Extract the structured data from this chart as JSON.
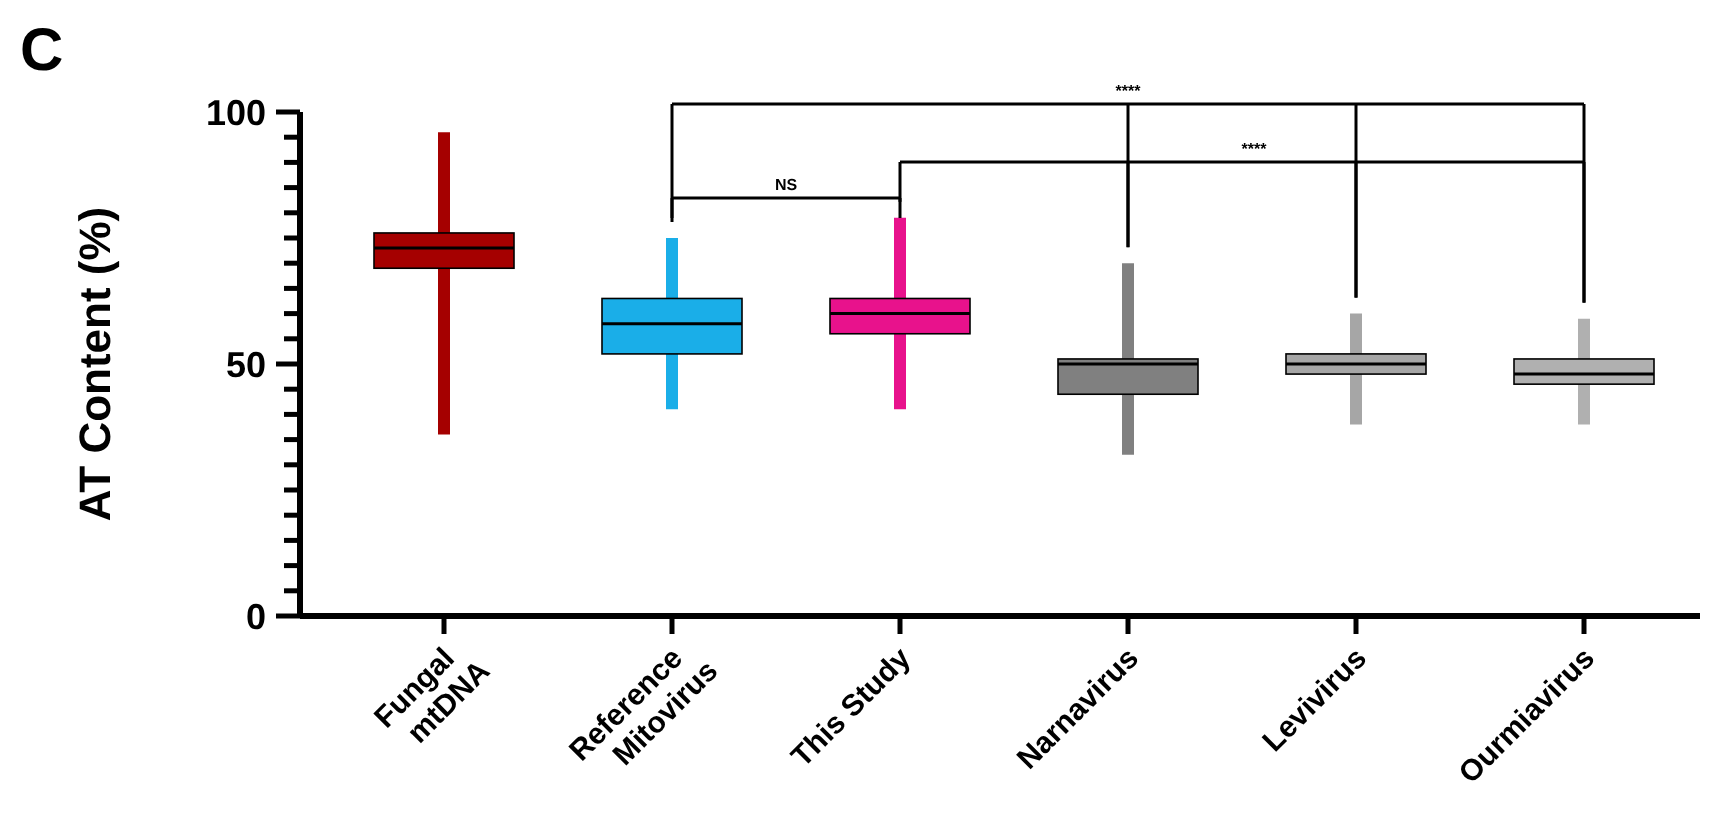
{
  "chart_data": {
    "type": "box",
    "title": "C",
    "ylabel": "AT Content (%)",
    "categories": [
      "Fungal\nmtDNA",
      "Reference\nMitovirus",
      "This Study",
      "Narnavirus",
      "Levivirus",
      "Ourmiavirus"
    ],
    "colors": [
      "#a50000",
      "#1aaee8",
      "#e8128c",
      "#808080",
      "#a6a6a6",
      "#b0b0b0"
    ],
    "boxes": [
      {
        "low": 36,
        "q1": 69,
        "median": 73,
        "q3": 76,
        "high": 96
      },
      {
        "low": 41,
        "q1": 52,
        "median": 58,
        "q3": 63,
        "high": 75
      },
      {
        "low": 41,
        "q1": 56,
        "median": 60,
        "q3": 63,
        "high": 79
      },
      {
        "low": 32,
        "q1": 44,
        "median": 50,
        "q3": 51,
        "high": 70
      },
      {
        "low": 38,
        "q1": 48,
        "median": 50,
        "q3": 52,
        "high": 60
      },
      {
        "low": 38,
        "q1": 46,
        "median": 48,
        "q3": 51,
        "high": 59
      }
    ],
    "ylim": [
      0,
      100
    ],
    "yticks": [
      0,
      {
        "value": 5,
        "label": null
      },
      {
        "value": 10,
        "label": null
      },
      {
        "value": 15,
        "label": null
      },
      {
        "value": 20,
        "label": null
      },
      {
        "value": 25,
        "label": null
      },
      {
        "value": 30,
        "label": null
      },
      {
        "value": 35,
        "label": null
      },
      {
        "value": 40,
        "label": null
      },
      {
        "value": 45,
        "label": null
      },
      50,
      {
        "value": 55,
        "label": null
      },
      {
        "value": 60,
        "label": null
      },
      {
        "value": 65,
        "label": null
      },
      {
        "value": 70,
        "label": null
      },
      {
        "value": 75,
        "label": null
      },
      {
        "value": 80,
        "label": null
      },
      {
        "value": 85,
        "label": null
      },
      {
        "value": 90,
        "label": null
      },
      {
        "value": 95,
        "label": null
      },
      100
    ],
    "grid": false,
    "annotations": [
      "****",
      "****",
      "NS"
    ]
  }
}
